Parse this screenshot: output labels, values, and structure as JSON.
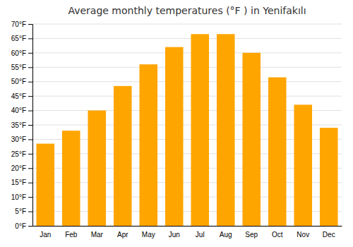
{
  "chart_data": {
    "type": "bar",
    "title": "Average monthly temperatures (°F ) in Yenifakılı",
    "categories": [
      "Jan",
      "Feb",
      "Mar",
      "Apr",
      "May",
      "Jun",
      "Jul",
      "Aug",
      "Sep",
      "Oct",
      "Nov",
      "Dec"
    ],
    "values": [
      28.5,
      33.0,
      40.0,
      48.5,
      56.0,
      62.0,
      66.5,
      66.5,
      60.0,
      51.5,
      42.0,
      34.0
    ],
    "color": "#FFA500",
    "ylim": [
      0,
      70
    ],
    "yticks": [
      {
        "value": 0,
        "label": "0°F"
      },
      {
        "value": 5,
        "label": "5°F"
      },
      {
        "value": 10,
        "label": "10°F"
      },
      {
        "value": 15,
        "label": "15°F"
      },
      {
        "value": 20,
        "label": "20°F"
      },
      {
        "value": 25,
        "label": "25°F"
      },
      {
        "value": 30,
        "label": "30°F"
      },
      {
        "value": 35,
        "label": "35°F"
      },
      {
        "value": 40,
        "label": "40°F"
      },
      {
        "value": 45,
        "label": "45°F"
      },
      {
        "value": 50,
        "label": "50°F"
      },
      {
        "value": 55,
        "label": "55°F"
      },
      {
        "value": 60,
        "label": "60°F"
      },
      {
        "value": 65,
        "label": "65°F"
      },
      {
        "value": 70,
        "label": "70°F"
      }
    ],
    "grid": true
  }
}
